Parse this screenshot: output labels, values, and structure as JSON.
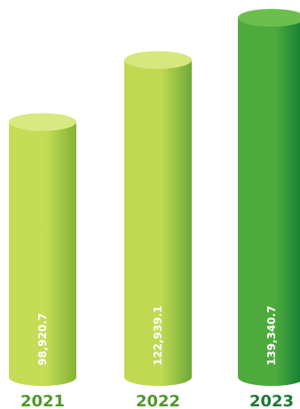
{
  "chart_data": {
    "type": "bar",
    "style": "3d-cylinder",
    "categories": [
      "2021",
      "2022",
      "2023"
    ],
    "values": [
      98920.7,
      122939.1,
      139340.7
    ],
    "value_labels": [
      "98,920.7",
      "122,939.1",
      "139,340.7"
    ],
    "title": "",
    "xlabel": "",
    "ylabel": "",
    "grid": false,
    "legend": "none",
    "colors": {
      "2021": {
        "light": "#c4dc56",
        "dark": "#84b334",
        "top": "#d9e982",
        "label": "#4c9a2a"
      },
      "2022": {
        "light": "#bfd953",
        "dark": "#6ea937",
        "top": "#d6e77e",
        "label": "#4c9a2a"
      },
      "2023": {
        "light": "#4eaa3c",
        "dark": "#0d7b35",
        "top": "#6cbf4e",
        "label": "#1b7a35"
      }
    }
  }
}
